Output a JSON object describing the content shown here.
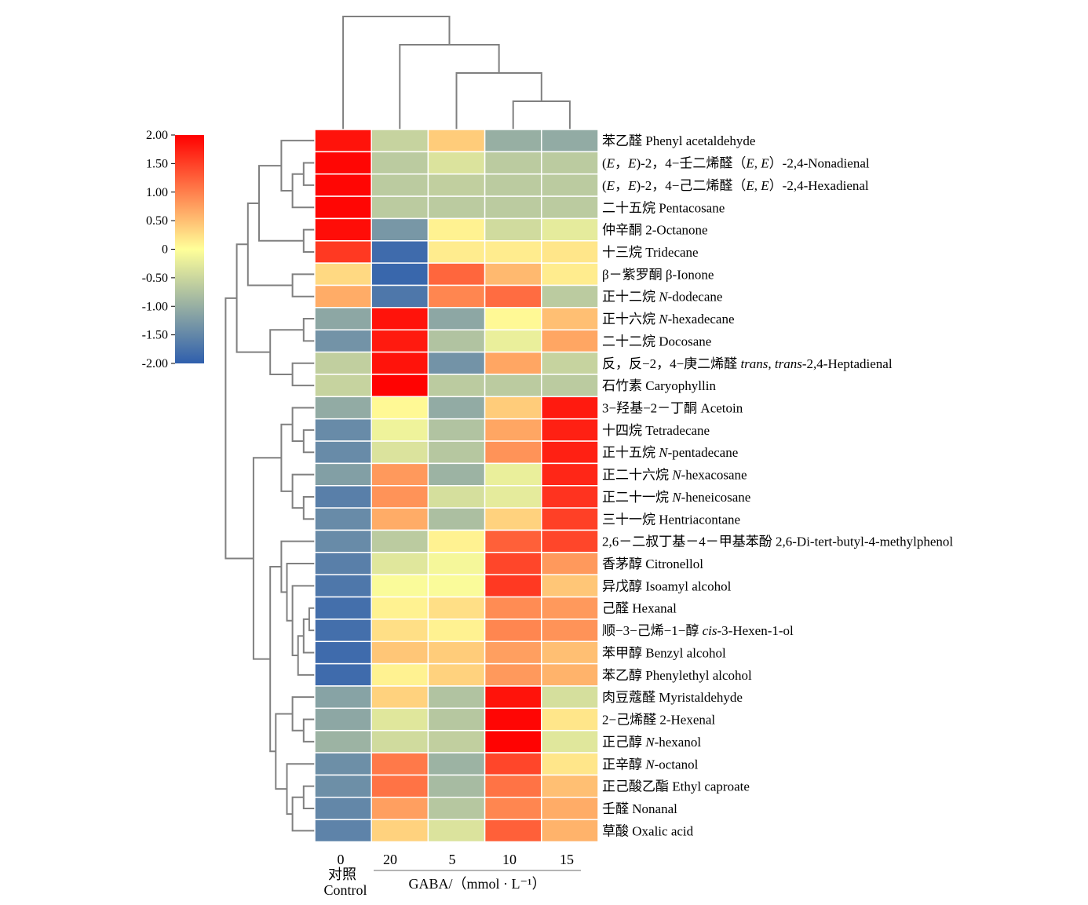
{
  "chart_data": {
    "type": "heatmap",
    "columns": [
      "0",
      "20",
      "5",
      "10",
      "15"
    ],
    "control_label_zh": "对照",
    "control_label_en": "Control",
    "x_axis_title": "GABA/（mmol · L⁻¹）",
    "colorbar": {
      "min": -2.0,
      "max": 2.0,
      "ticks": [
        "2.00",
        "1.50",
        "1.00",
        "0.50",
        "0",
        "-0.50",
        "-1.00",
        "-1.50",
        "-2.00"
      ],
      "colors": [
        "#2f5fad",
        "#ffff99",
        "#ff0000"
      ]
    },
    "rows": [
      {
        "label": "苯乙醛 Phenyl acetaldehyde",
        "values": [
          1.85,
          -0.55,
          0.4,
          -1.0,
          -1.05
        ]
      },
      {
        "label": "(E，E)-2，4−壬二烯醛（E, E）-2,4-Nonadienal",
        "values": [
          1.95,
          -0.65,
          -0.35,
          -0.65,
          -0.65
        ]
      },
      {
        "label": "(E，E)-2，4−己二烯醛（E, E）-2,4-Hexadienal",
        "values": [
          1.95,
          -0.65,
          -0.6,
          -0.65,
          -0.65
        ]
      },
      {
        "label": "二十五烷 Pentacosane",
        "values": [
          1.95,
          -0.65,
          -0.65,
          -0.65,
          -0.65
        ]
      },
      {
        "label": "仲辛酮 2-Octanone",
        "values": [
          1.9,
          -1.3,
          0.1,
          -0.45,
          -0.25
        ]
      },
      {
        "label": "十三烷 Tridecane",
        "values": [
          1.55,
          -1.85,
          0.15,
          0.15,
          0.2
        ]
      },
      {
        "label": "β－紫罗酮 β-Ionone",
        "values": [
          0.3,
          -1.9,
          1.2,
          0.55,
          0.15
        ]
      },
      {
        "label": "正十二烷 N-dodecane",
        "values": [
          0.65,
          -1.7,
          0.95,
          1.15,
          -0.65
        ]
      },
      {
        "label": "正十六烷 N-hexadecane",
        "values": [
          -1.1,
          1.85,
          -1.1,
          0.05,
          0.5
        ]
      },
      {
        "label": "二十二烷 Docosane",
        "values": [
          -1.35,
          1.8,
          -0.75,
          -0.2,
          0.7
        ]
      },
      {
        "label": "反，反−2，4−庚二烯醛 trans, trans-2,4-Heptadienal",
        "values": [
          -0.6,
          1.85,
          -1.35,
          0.7,
          -0.55
        ]
      },
      {
        "label": "石竹素 Caryophyllin",
        "values": [
          -0.55,
          1.98,
          -0.65,
          -0.65,
          -0.65
        ]
      },
      {
        "label": "3−羟基−2－丁酮 Acetoin",
        "values": [
          -1.05,
          0.05,
          -1.05,
          0.4,
          1.8
        ]
      },
      {
        "label": "十四烷 Tetradecane",
        "values": [
          -1.45,
          -0.15,
          -0.75,
          0.7,
          1.75
        ]
      },
      {
        "label": "正十五烷 N-pentadecane",
        "values": [
          -1.45,
          -0.35,
          -0.7,
          0.85,
          1.75
        ]
      },
      {
        "label": "正二十六烷 N-hexacosane",
        "values": [
          -1.2,
          0.8,
          -0.95,
          -0.2,
          1.7
        ]
      },
      {
        "label": "正二十一烷 N-heneicosane",
        "values": [
          -1.6,
          0.85,
          -0.4,
          -0.25,
          1.6
        ]
      },
      {
        "label": "三十一烷 Hentriacontane",
        "values": [
          -1.45,
          0.65,
          -0.8,
          0.35,
          1.5
        ]
      },
      {
        "label": "2,6－二叔丁基－4－甲基苯酚 2,6-Di-tert-butyl-4-methylphenol",
        "values": [
          -1.45,
          -0.65,
          0.1,
          1.25,
          1.45
        ]
      },
      {
        "label": "香茅醇 Citronellol",
        "values": [
          -1.6,
          -0.3,
          -0.1,
          1.45,
          0.8
        ]
      },
      {
        "label": "异戊醇 Isoamyl alcohol",
        "values": [
          -1.7,
          -0.05,
          -0.05,
          1.55,
          0.45
        ]
      },
      {
        "label": "己醛 Hexanal",
        "values": [
          -1.8,
          0.1,
          0.25,
          0.9,
          0.8
        ]
      },
      {
        "label": "顺−3−己烯−1−醇 cis-3-Hexen-1-ol",
        "values": [
          -1.8,
          0.25,
          0.1,
          0.95,
          0.85
        ]
      },
      {
        "label": "苯甲醇 Benzyl alcohol",
        "values": [
          -1.85,
          0.45,
          0.4,
          0.75,
          0.5
        ]
      },
      {
        "label": "苯乙醇 Phenylethyl alcohol",
        "values": [
          -1.85,
          0.1,
          0.35,
          0.8,
          0.6
        ]
      },
      {
        "label": "肉豆蔻醛 Myristaldehyde",
        "values": [
          -1.15,
          0.35,
          -0.75,
          1.85,
          -0.4
        ]
      },
      {
        "label": "2−己烯醛 2-Hexenal",
        "values": [
          -1.1,
          -0.3,
          -0.7,
          1.95,
          0.2
        ]
      },
      {
        "label": "正己醇 N-hexanol",
        "values": [
          -0.95,
          -0.45,
          -0.6,
          1.98,
          -0.3
        ]
      },
      {
        "label": "正辛醇 N-octanol",
        "values": [
          -1.4,
          1.05,
          -0.95,
          1.45,
          0.2
        ]
      },
      {
        "label": "正己酸乙酯 Ethyl caproate",
        "values": [
          -1.4,
          1.1,
          -0.85,
          1.1,
          0.5
        ]
      },
      {
        "label": "壬醛 Nonanal",
        "values": [
          -1.5,
          0.75,
          -0.7,
          0.95,
          0.65
        ]
      },
      {
        "label": "草酸 Oxalic acid",
        "values": [
          -1.55,
          0.35,
          -0.35,
          1.25,
          0.6
        ]
      }
    ],
    "column_dendrogram": [
      {
        "a": 3,
        "b": 4,
        "height": 1
      },
      {
        "a": 2,
        "b": "n0",
        "height": 2
      },
      {
        "a": 1,
        "b": "n1",
        "height": 3
      },
      {
        "a": 0,
        "b": "n2",
        "height": 4
      }
    ],
    "row_dendrogram": [
      {
        "a": 1,
        "b": 2,
        "height": 1
      },
      {
        "a": "n0",
        "b": 3,
        "height": 2
      },
      {
        "a": 0,
        "b": "n1",
        "height": 3
      },
      {
        "a": 4,
        "b": 5,
        "height": 1
      },
      {
        "a": "n2",
        "b": "n3",
        "height": 5
      },
      {
        "a": 6,
        "b": 7,
        "height": 2
      },
      {
        "a": "n4",
        "b": "n5",
        "height": 6
      },
      {
        "a": 8,
        "b": 9,
        "height": 1
      },
      {
        "a": 10,
        "b": 11,
        "height": 2
      },
      {
        "a": "n7",
        "b": "n8",
        "height": 4
      },
      {
        "a": "n6",
        "b": "n9",
        "height": 7
      },
      {
        "a": 13,
        "b": 14,
        "height": 1
      },
      {
        "a": 12,
        "b": "n11",
        "height": 2
      },
      {
        "a": 16,
        "b": 17,
        "height": 1
      },
      {
        "a": 15,
        "b": "n13",
        "height": 2
      },
      {
        "a": "n12",
        "b": "n14",
        "height": 3
      },
      {
        "a": 21,
        "b": 22,
        "height": 0.5
      },
      {
        "a": "n16",
        "b": 23,
        "height": 1
      },
      {
        "a": "n17",
        "b": 24,
        "height": 1.5
      },
      {
        "a": 20,
        "b": "n18",
        "height": 2
      },
      {
        "a": 19,
        "b": "n19",
        "height": 2.5
      },
      {
        "a": 18,
        "b": "n20",
        "height": 3
      },
      {
        "a": 26,
        "b": 27,
        "height": 1
      },
      {
        "a": 25,
        "b": "n22",
        "height": 2
      },
      {
        "a": 29,
        "b": 30,
        "height": 1
      },
      {
        "a": "n24",
        "b": 31,
        "height": 2
      },
      {
        "a": 28,
        "b": "n25",
        "height": 2.5
      },
      {
        "a": "n23",
        "b": "n26",
        "height": 3.5
      },
      {
        "a": "n21",
        "b": "n27",
        "height": 4
      },
      {
        "a": "n15",
        "b": "n28",
        "height": 5.5
      },
      {
        "a": "n10",
        "b": "n29",
        "height": 8
      }
    ]
  }
}
